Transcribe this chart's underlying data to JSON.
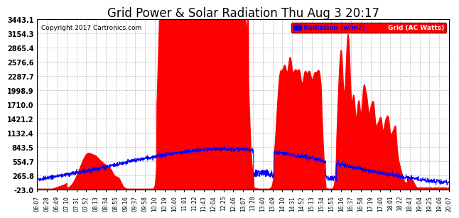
{
  "title": "Grid Power & Solar Radiation Thu Aug 3 20:17",
  "copyright": "Copyright 2017 Cartronics.com",
  "legend_labels": [
    "Radiation (w/m2)",
    "Grid (AC Watts)"
  ],
  "yticks": [
    -23.0,
    265.8,
    554.7,
    843.5,
    1132.4,
    1421.2,
    1710.0,
    1998.9,
    2287.7,
    2576.6,
    2865.4,
    3154.3,
    3443.1
  ],
  "ylim": [
    -23.0,
    3443.1
  ],
  "background_color": "#ffffff",
  "grid_color": "#aaaaaa",
  "title_fontsize": 12,
  "x_labels": [
    "06:07",
    "06:28",
    "06:49",
    "07:10",
    "07:31",
    "07:52",
    "08:13",
    "08:34",
    "08:55",
    "09:16",
    "09:37",
    "09:58",
    "10:10",
    "10:19",
    "10:40",
    "11:01",
    "11:22",
    "11:43",
    "12:04",
    "12:25",
    "12:46",
    "13:07",
    "13:28",
    "13:40",
    "13:49",
    "14:10",
    "14:31",
    "14:52",
    "15:13",
    "15:34",
    "15:55",
    "16:16",
    "16:37",
    "16:58",
    "17:19",
    "17:40",
    "18:01",
    "18:22",
    "18:43",
    "19:04",
    "19:25",
    "19:46",
    "20:07"
  ],
  "n_points": 2000
}
